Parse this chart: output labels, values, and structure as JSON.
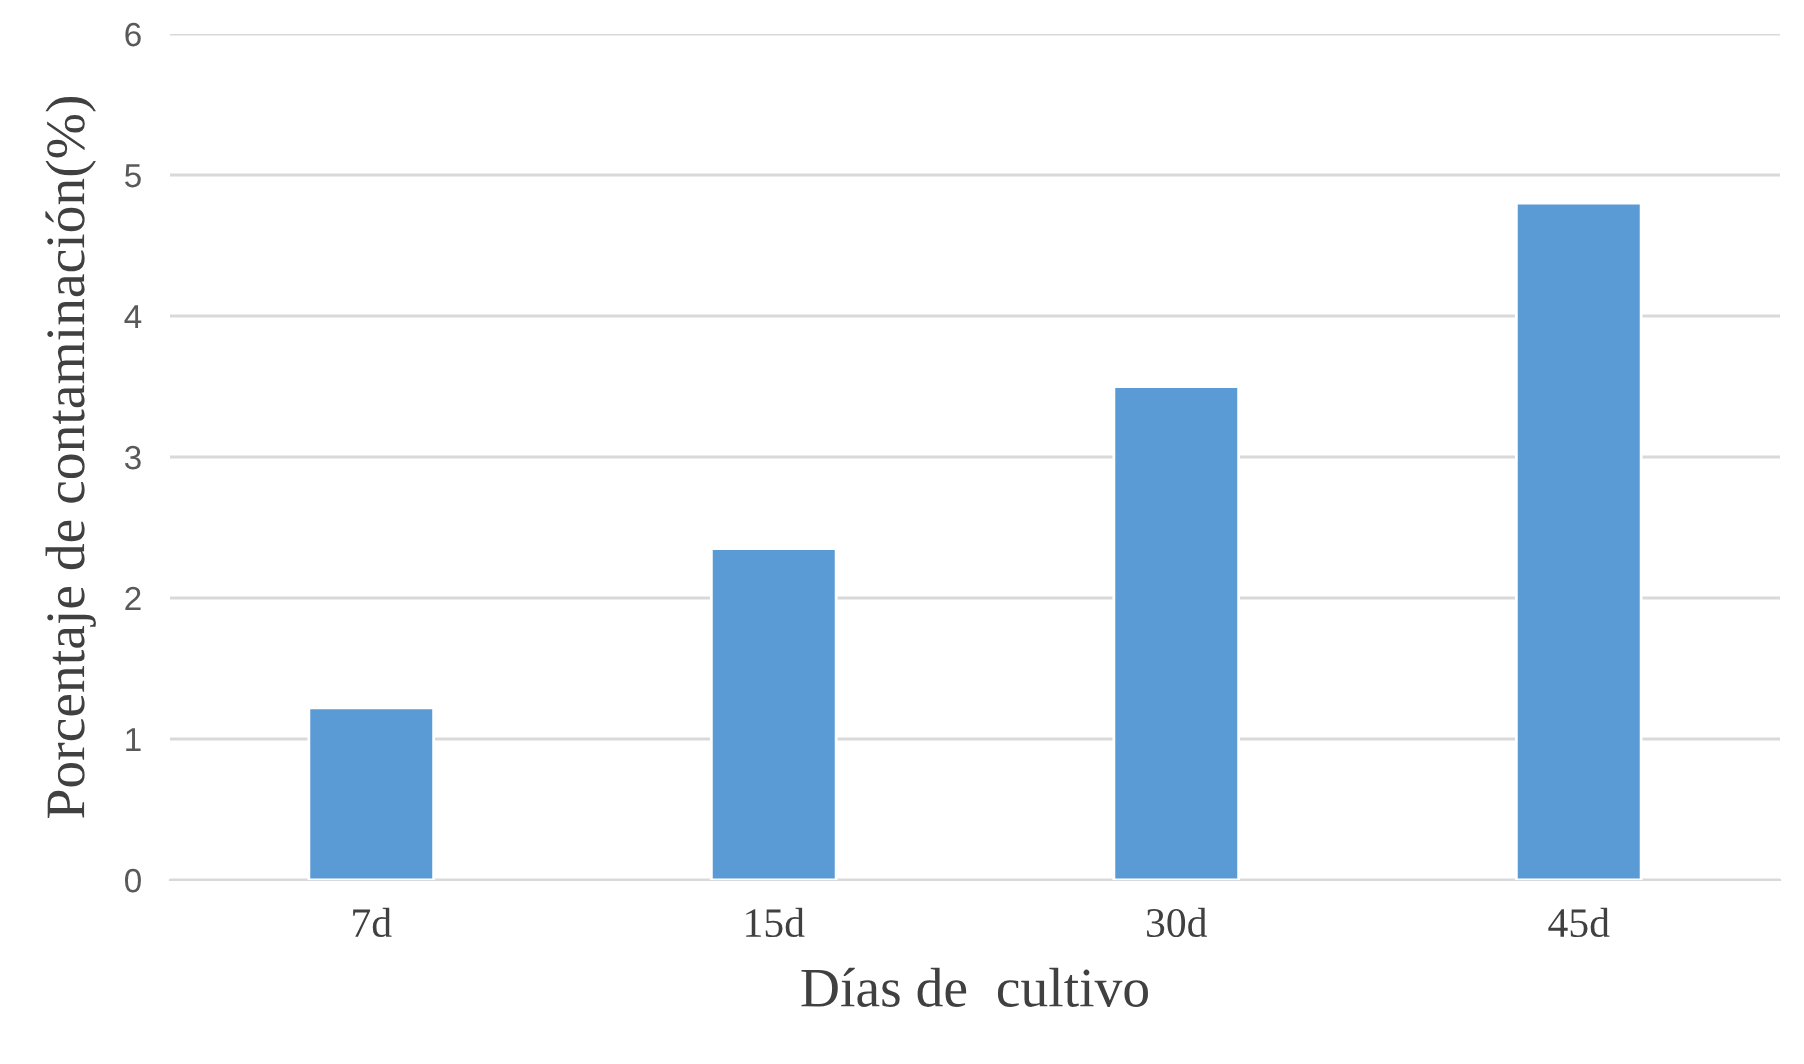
{
  "chart_data": {
    "type": "bar",
    "xlabel": "Días de  cultivo",
    "ylabel": "Porcentaje de contaminación(%)",
    "categories": [
      "7d",
      "15d",
      "30d",
      "45d"
    ],
    "values": [
      1.22,
      2.35,
      3.5,
      4.8
    ],
    "color": "#5b9bd5",
    "ylim": [
      0,
      6
    ],
    "yticks": [
      0,
      1,
      2,
      3,
      4,
      5,
      6
    ],
    "grid": "y"
  }
}
